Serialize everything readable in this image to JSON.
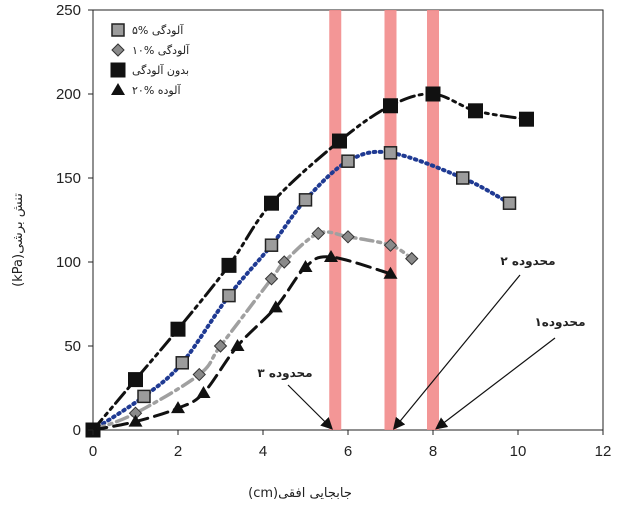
{
  "chart_data": {
    "type": "scatter",
    "xlabel": "جابجایی افقی(cm)",
    "ylabel": "تنش برشی(kPa)",
    "xlim": [
      0,
      12
    ],
    "ylim": [
      0,
      250
    ],
    "xticks": [
      "0",
      "2",
      "4",
      "6",
      "8",
      "10",
      "12"
    ],
    "yticks": [
      "0",
      "50",
      "100",
      "150",
      "200",
      "250"
    ],
    "grid": false,
    "legend_position": "top-left",
    "series": [
      {
        "name": "۵% آلودگی",
        "marker": "square-gray",
        "line_style": "dotted",
        "line_color": "#1f3a93",
        "x": [
          0,
          1.2,
          2.1,
          3.2,
          4.2,
          5.0,
          6.0,
          7.0,
          8.7,
          9.8
        ],
        "y": [
          0,
          20,
          40,
          80,
          110,
          137,
          160,
          165,
          150,
          135
        ]
      },
      {
        "name": "۱۰% آلودگی",
        "marker": "diamond-gray",
        "line_style": "dash-dot",
        "line_color": "#a0a0a0",
        "x": [
          0,
          1.0,
          2.5,
          3.0,
          4.2,
          4.5,
          5.3,
          6.0,
          7.0,
          7.5
        ],
        "y": [
          0,
          10,
          33,
          50,
          90,
          100,
          117,
          115,
          110,
          102
        ]
      },
      {
        "name": "بدون آلودگی",
        "marker": "square-black",
        "line_style": "dash-dot-dot",
        "line_color": "#111111",
        "x": [
          0,
          1.0,
          2.0,
          3.2,
          4.2,
          5.8,
          7.0,
          8.0,
          9.0,
          10.2
        ],
        "y": [
          0,
          30,
          60,
          98,
          135,
          172,
          193,
          200,
          190,
          185
        ]
      },
      {
        "name": "۲۰% آلوده",
        "marker": "triangle-black",
        "line_style": "dashed",
        "line_color": "#111111",
        "x": [
          0,
          1.0,
          2.0,
          2.6,
          3.4,
          4.3,
          5.0,
          5.6,
          7.0
        ],
        "y": [
          0,
          5,
          13,
          22,
          50,
          73,
          97,
          103,
          93
        ]
      }
    ],
    "highlight_bands": [
      {
        "x": 5.7,
        "label": "محدوده ۳"
      },
      {
        "x": 7.0,
        "label": "محدوده ۲"
      },
      {
        "x": 8.0,
        "label": "محدوده۱"
      }
    ],
    "band_color": "#f28b8b"
  }
}
